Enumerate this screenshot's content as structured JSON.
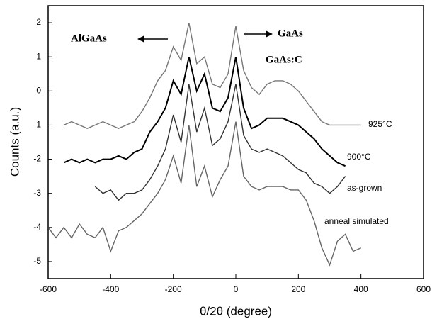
{
  "chart_data": {
    "type": "line",
    "x_label": "θ/2θ (degree)",
    "y_label": "Counts (a.u.)",
    "annotations": [
      "AlGaAs",
      "GaAs",
      "GaAs:C"
    ],
    "x": [
      -600,
      -575,
      -550,
      -525,
      -500,
      -475,
      -450,
      -425,
      -400,
      -375,
      -350,
      -325,
      -300,
      -275,
      -250,
      -225,
      -200,
      -175,
      -150,
      -125,
      -100,
      -75,
      -50,
      -25,
      0,
      25,
      50,
      75,
      100,
      125,
      150,
      175,
      200,
      225,
      250,
      275,
      300,
      325,
      350,
      375,
      400
    ],
    "series": [
      {
        "name": "925°C",
        "color": "#777777",
        "values": [
          null,
          null,
          -1.0,
          -0.9,
          -1.0,
          -1.1,
          -1.0,
          -0.9,
          -1.0,
          -1.1,
          -1.0,
          -0.9,
          -0.6,
          -0.2,
          0.3,
          0.6,
          1.3,
          0.9,
          2.0,
          0.8,
          1.0,
          0.2,
          0.1,
          0.5,
          1.9,
          0.6,
          0.1,
          -0.1,
          0.2,
          0.3,
          0.3,
          0.2,
          0.0,
          -0.3,
          -0.6,
          -0.9,
          -1.0,
          -1.0,
          -1.0,
          -1.0,
          -1.0
        ]
      },
      {
        "name": "900°C",
        "color": "#000000",
        "values": [
          null,
          null,
          -2.1,
          -2.0,
          -2.1,
          -2.0,
          -2.1,
          -2.0,
          -2.0,
          -1.9,
          -2.0,
          -1.8,
          -1.7,
          -1.2,
          -0.9,
          -0.5,
          0.3,
          -0.1,
          1.0,
          0.0,
          0.5,
          -0.5,
          -0.6,
          -0.2,
          1.0,
          -0.5,
          -1.1,
          -1.0,
          -0.8,
          -0.8,
          -0.8,
          -0.9,
          -1.0,
          -1.2,
          -1.4,
          -1.7,
          -1.9,
          -2.1,
          -2.2,
          null,
          null
        ]
      },
      {
        "name": "as-grown",
        "color": "#333333",
        "values": [
          null,
          null,
          null,
          null,
          null,
          null,
          -2.8,
          -3.0,
          -2.9,
          -3.2,
          -3.0,
          -3.0,
          -2.9,
          -2.6,
          -2.2,
          -1.7,
          -0.7,
          -1.5,
          0.2,
          -1.2,
          -0.5,
          -1.6,
          -1.4,
          -0.9,
          0.2,
          -1.3,
          -1.7,
          -1.8,
          -1.7,
          -1.8,
          -1.9,
          -2.1,
          -2.3,
          -2.4,
          -2.7,
          -2.8,
          -3.0,
          -2.8,
          -2.5,
          null,
          null
        ]
      },
      {
        "name": "anneal simulated",
        "color": "#666666",
        "values": [
          -4.0,
          -4.3,
          -4.0,
          -4.3,
          -3.9,
          -4.2,
          -4.3,
          -4.0,
          -4.7,
          -4.1,
          -4.0,
          -3.8,
          -3.6,
          -3.3,
          -3.0,
          -2.6,
          -1.9,
          -2.7,
          -1.0,
          -2.8,
          -2.2,
          -3.1,
          -2.6,
          -2.2,
          -0.9,
          -2.5,
          -2.8,
          -2.9,
          -2.8,
          -2.8,
          -2.8,
          -2.9,
          -2.9,
          -3.2,
          -3.8,
          -4.6,
          -5.1,
          -4.4,
          -4.2,
          -4.7,
          -4.6
        ]
      }
    ],
    "xlim": [
      -600,
      600
    ],
    "ylim": [
      -5.5,
      2.5
    ],
    "xticks": [
      -600,
      -400,
      -200,
      0,
      200,
      400,
      600
    ],
    "yticks": [
      -5,
      -4,
      -3,
      -2,
      -1,
      0,
      1,
      2
    ],
    "grid": false
  }
}
